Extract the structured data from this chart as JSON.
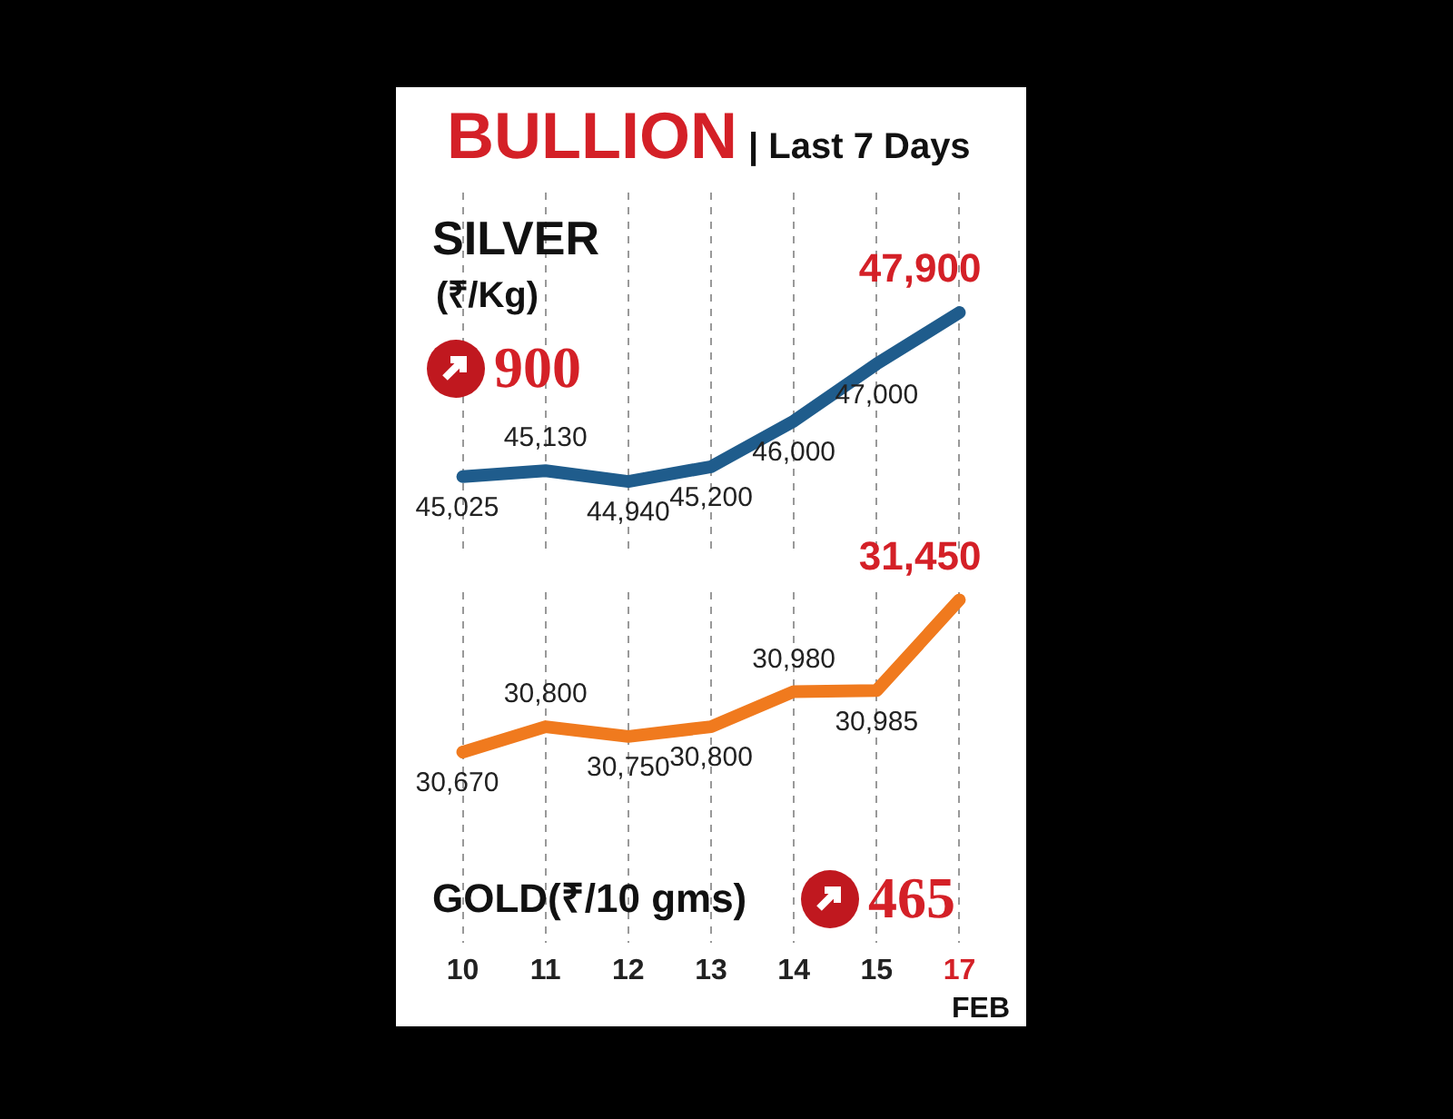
{
  "chart_data": [
    {
      "type": "other",
      "title": "BULLION",
      "subtitle": "| Last 7 Days"
    },
    {
      "type": "line",
      "title": "SILVER",
      "subtitle": "(₹/Kg)",
      "categories": [
        "10",
        "11",
        "12",
        "13",
        "14",
        "15",
        "17"
      ],
      "series": [
        {
          "color": "#1f5c8c",
          "values": [
            45025,
            45130,
            44940,
            45200,
            46000,
            47000,
            47900
          ],
          "value_labels": [
            "45,025",
            "45,130",
            "44,940",
            "45,200",
            "46,000",
            "47,000",
            "47,900"
          ]
        }
      ],
      "tick_labels": false,
      "grid": "x",
      "legend": false,
      "line_style": "solid",
      "annotations": [
        "900"
      ]
    },
    {
      "type": "line",
      "title": "GOLD(₹/10 gms)",
      "xlabel": "FEB",
      "categories": [
        "10",
        "11",
        "12",
        "13",
        "14",
        "15",
        "17"
      ],
      "series": [
        {
          "color": "#f07a1e",
          "values": [
            30670,
            30800,
            30750,
            30800,
            30980,
            30985,
            31450
          ],
          "value_labels": [
            "30,670",
            "30,800",
            "30,750",
            "30,800",
            "30,980",
            "30,985",
            "31,450"
          ]
        }
      ],
      "tick_labels": "x",
      "grid": "x",
      "legend": false,
      "line_style": "solid",
      "annotations": [
        "465"
      ]
    }
  ]
}
